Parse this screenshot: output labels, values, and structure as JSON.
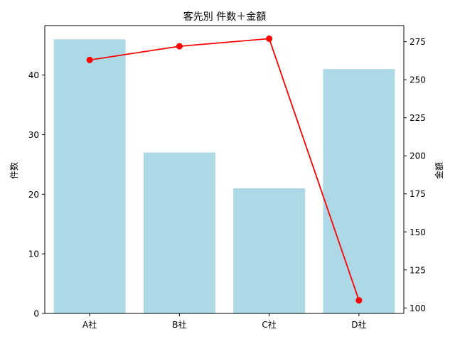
{
  "chart_data": {
    "type": "bar",
    "title": "客先別 件数＋金額",
    "categories": [
      "A社",
      "B社",
      "C社",
      "D社"
    ],
    "series": [
      {
        "key": "count",
        "type": "bar",
        "axis": "left",
        "values": [
          46,
          27,
          21,
          41
        ],
        "color": "#add8e6"
      },
      {
        "key": "amount",
        "type": "line",
        "axis": "right",
        "values": [
          263,
          272,
          277,
          105
        ],
        "color": "#ff0000",
        "marker": "circle"
      }
    ],
    "y_left": {
      "label": "件数",
      "range": [
        0,
        48.3
      ],
      "ticks": [
        0,
        10,
        20,
        30,
        40
      ]
    },
    "y_right": {
      "label": "金額",
      "range": [
        96.4,
        285.6
      ],
      "ticks": [
        100,
        125,
        150,
        175,
        200,
        225,
        250,
        275
      ]
    },
    "grid": false,
    "legend": "none"
  }
}
